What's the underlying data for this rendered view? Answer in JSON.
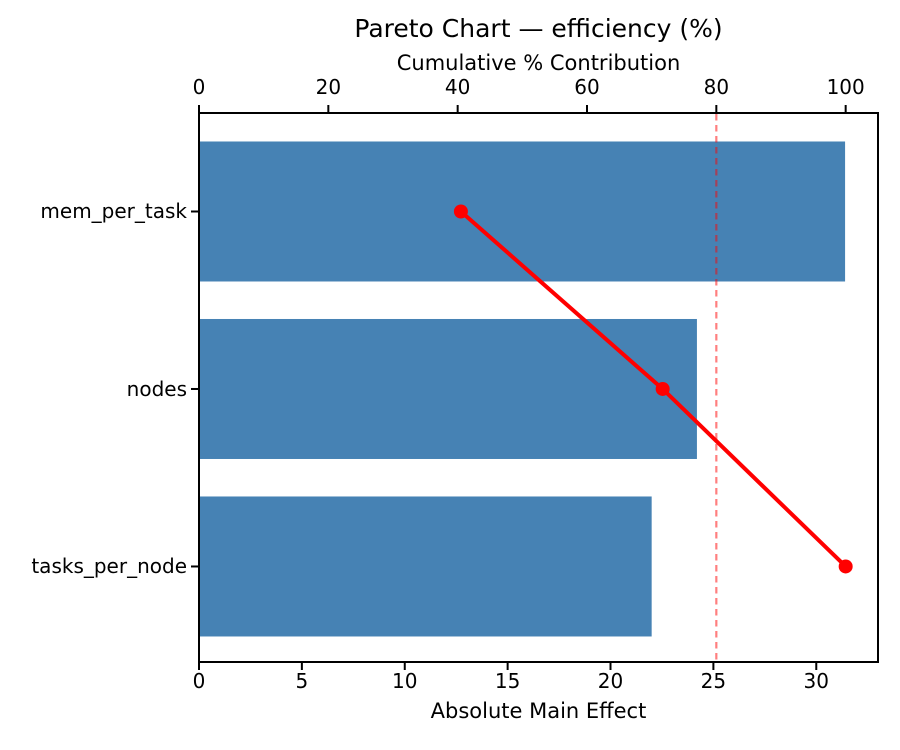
{
  "chart_data": {
    "type": "bar",
    "subtype": "pareto",
    "orientation": "horizontal",
    "title": "Pareto Chart — efficiency (%)",
    "categories": [
      "mem_per_task",
      "nodes",
      "tasks_per_node"
    ],
    "values": [
      31.4,
      24.2,
      22.0
    ],
    "bar_color": "#4682b4",
    "background_color": "#ffffff",
    "grid": false,
    "legend": false,
    "bottom_axis": {
      "label": "Absolute Main Effect",
      "ticks": [
        0,
        5,
        10,
        15,
        20,
        25,
        30
      ],
      "lim": [
        0,
        33
      ]
    },
    "top_axis": {
      "label": "Cumulative % Contribution",
      "ticks": [
        0,
        20,
        40,
        60,
        80,
        100
      ],
      "lim": [
        0,
        105
      ]
    },
    "cumulative_line": {
      "name": "Cumulative % Contribution",
      "values": [
        40.5,
        71.7,
        100.0
      ],
      "color": "#ff0000",
      "marker": "circle"
    },
    "threshold_line": {
      "value": 80,
      "axis": "top",
      "style": "dashed",
      "color": "#ff0000",
      "opacity": 0.5
    }
  }
}
